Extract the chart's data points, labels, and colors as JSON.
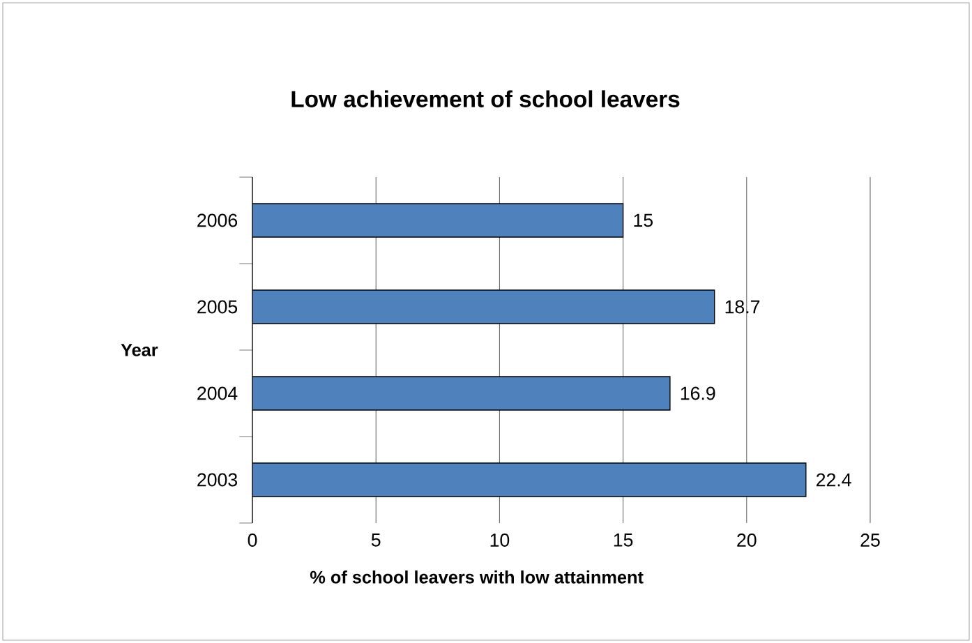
{
  "chart_data": {
    "type": "bar",
    "orientation": "horizontal",
    "title": "Low achievement of school leavers",
    "xlabel": "% of school leavers with low attainment",
    "ylabel": "Year",
    "categories": [
      "2006",
      "2005",
      "2004",
      "2003"
    ],
    "values": [
      15,
      18.7,
      16.9,
      22.4
    ],
    "color": "#4f81bd",
    "xlim": [
      0,
      25
    ],
    "xticks": [
      0,
      5,
      10,
      15,
      20,
      25
    ],
    "grid": "x",
    "data_labels": true
  }
}
